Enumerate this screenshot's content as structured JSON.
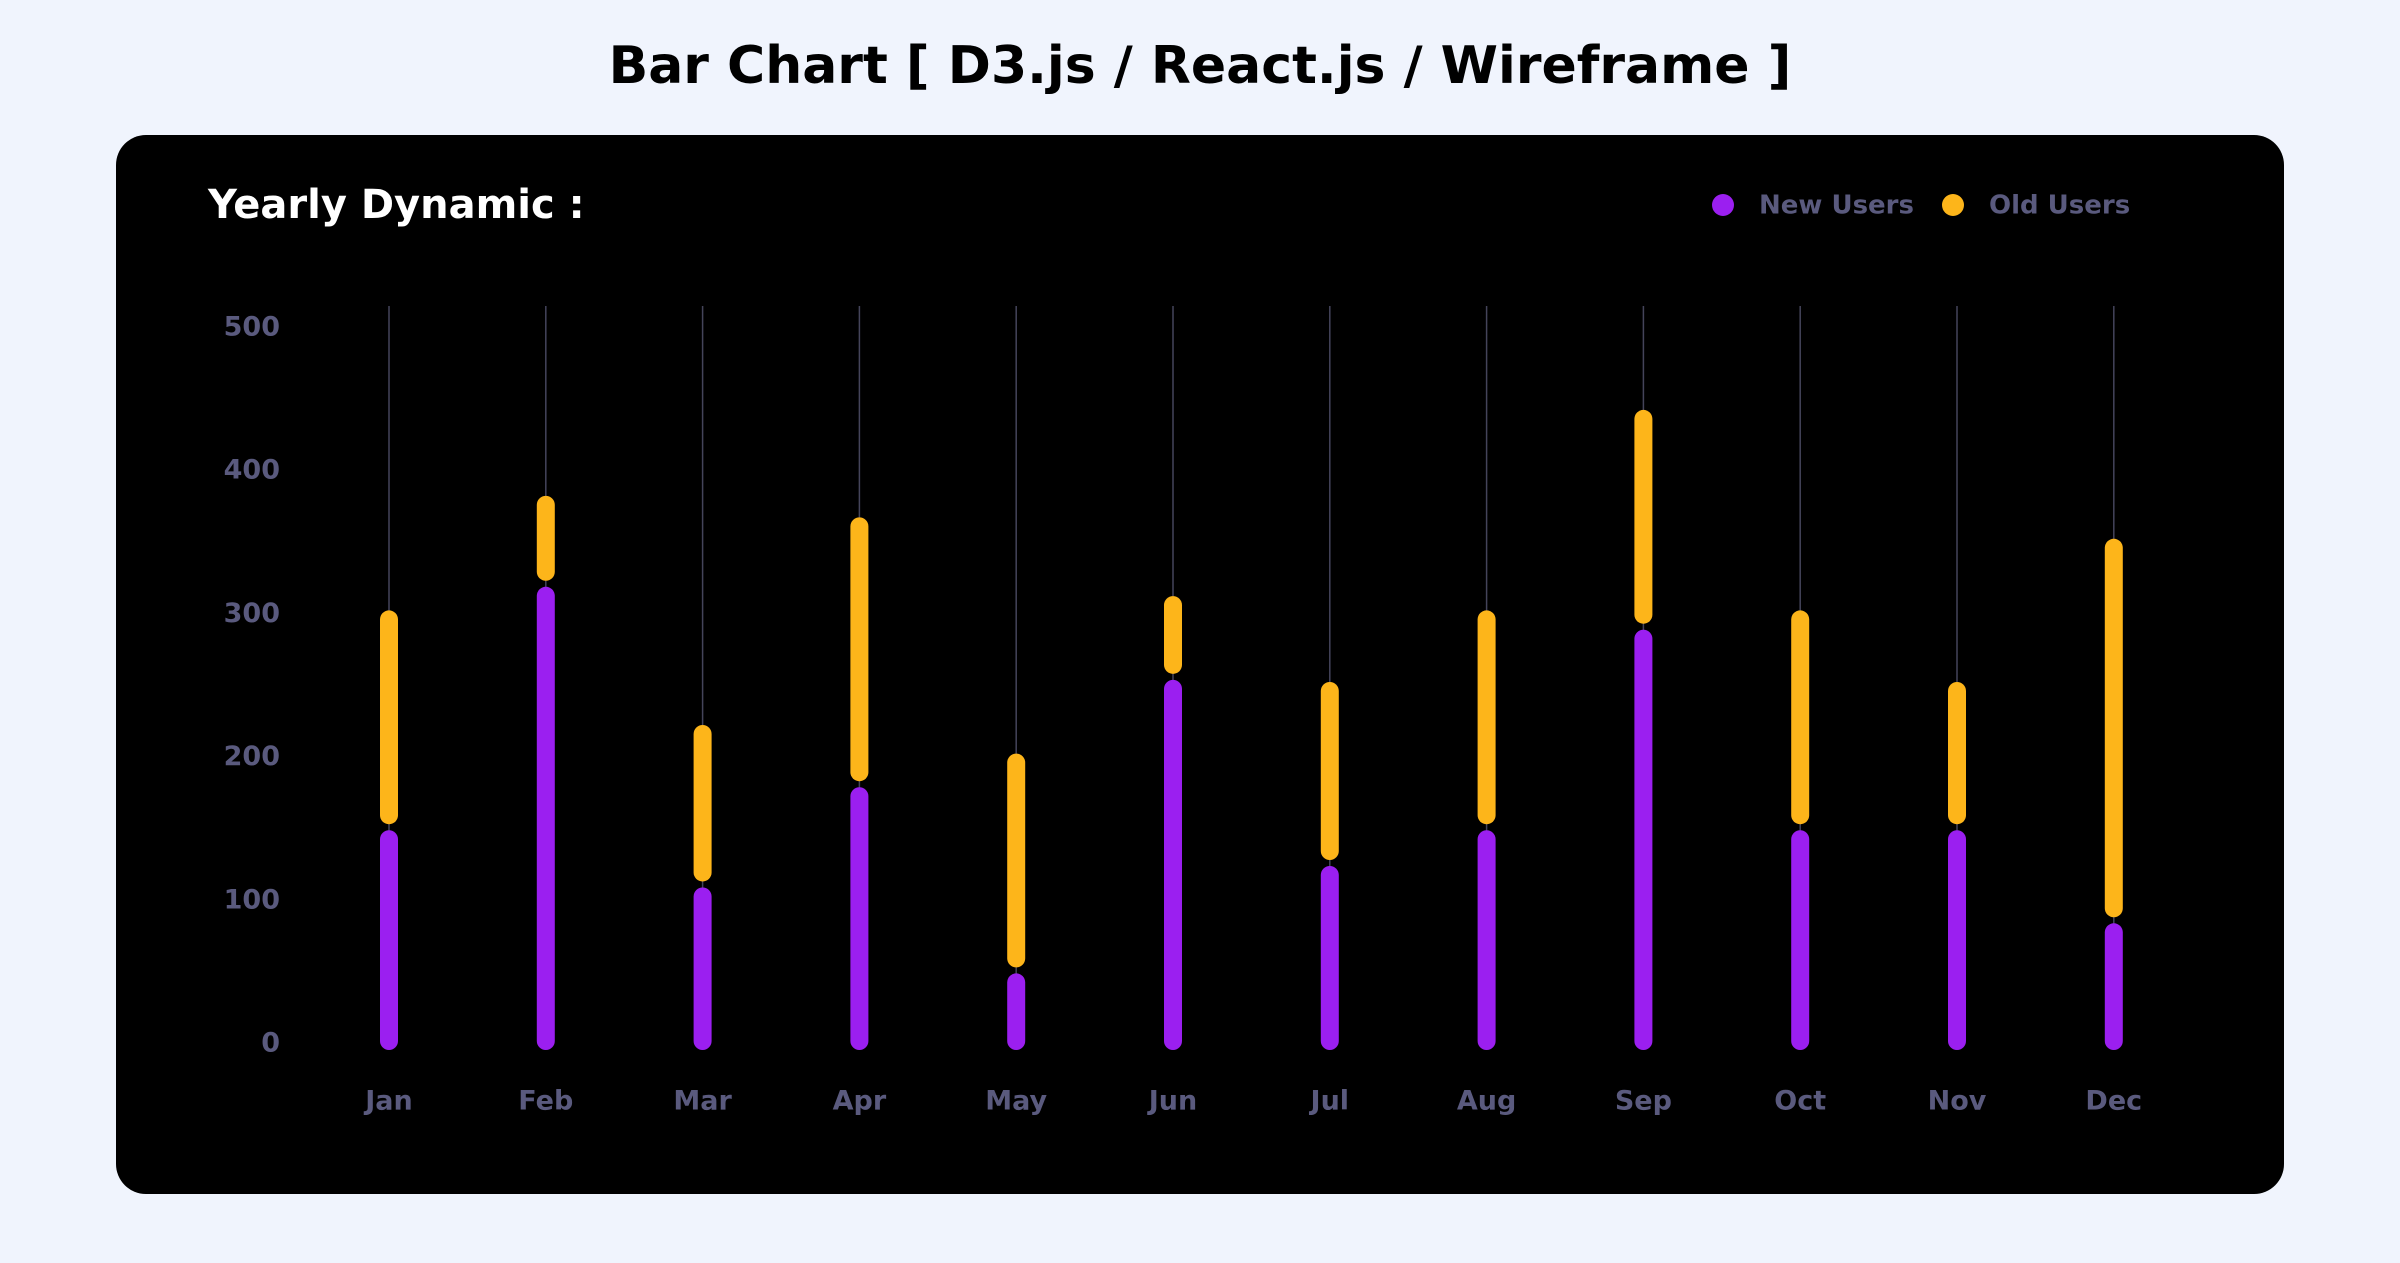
{
  "chart_data": {
    "type": "bar",
    "stacked": true,
    "title": "Bar Chart [ D3.js / React.js / Wireframe ]",
    "subtitle": "Yearly Dynamic :",
    "categories": [
      "Jan",
      "Feb",
      "Mar",
      "Apr",
      "May",
      "Jun",
      "Jul",
      "Aug",
      "Sep",
      "Oct",
      "Nov",
      "Dec"
    ],
    "series": [
      {
        "name": "New Users",
        "color": "#9b1ff0",
        "values": [
          150,
          320,
          110,
          180,
          50,
          255,
          125,
          150,
          290,
          150,
          150,
          85
        ]
      },
      {
        "name": "Old Users",
        "color": "#fdb51a",
        "values": [
          150,
          60,
          110,
          185,
          150,
          55,
          125,
          150,
          150,
          150,
          100,
          265
        ]
      }
    ],
    "ylim": [
      0,
      500
    ],
    "yticks": [
      0,
      100,
      200,
      300,
      400,
      500
    ],
    "legend": "top-right"
  }
}
